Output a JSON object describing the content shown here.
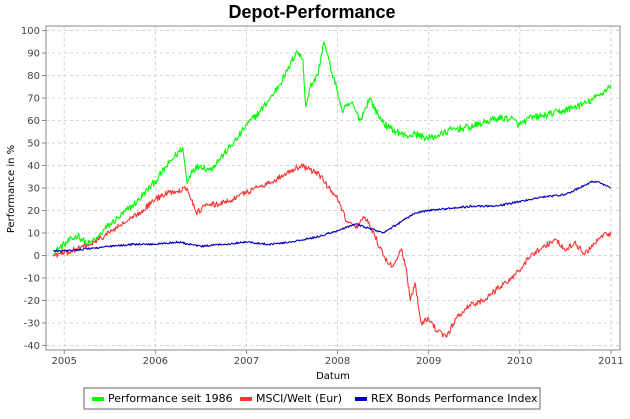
{
  "chart_data": {
    "type": "line",
    "title": "Depot-Performance",
    "xlabel": "Datum",
    "ylabel": "Performance in %",
    "xlim": [
      2004.8,
      2011.1
    ],
    "ylim": [
      -42,
      102
    ],
    "x_ticks": [
      2005,
      2006,
      2007,
      2008,
      2009,
      2010,
      2011
    ],
    "x_tick_labels": [
      "2005",
      "2006",
      "2007",
      "2008",
      "2009",
      "2010",
      "2011"
    ],
    "y_ticks": [
      -40,
      -30,
      -20,
      -10,
      0,
      10,
      20,
      30,
      40,
      50,
      60,
      70,
      80,
      90,
      100
    ],
    "y_tick_labels": [
      "-40",
      "-30",
      "-20",
      "-10",
      "0",
      "10",
      "20",
      "30",
      "40",
      "50",
      "60",
      "70",
      "80",
      "90",
      "100"
    ],
    "grid": true,
    "legend_position": "bottom",
    "series": [
      {
        "name": "Performance seit 1986",
        "color": "#00ff00",
        "x": [
          2004.88,
          2005.0,
          2005.15,
          2005.25,
          2005.35,
          2005.45,
          2005.6,
          2005.8,
          2006.0,
          2006.15,
          2006.3,
          2006.35,
          2006.4,
          2006.5,
          2006.6,
          2006.75,
          2006.9,
          2007.0,
          2007.15,
          2007.3,
          2007.45,
          2007.55,
          2007.62,
          2007.65,
          2007.7,
          2007.78,
          2007.85,
          2007.92,
          2008.0,
          2008.05,
          2008.15,
          2008.25,
          2008.35,
          2008.45,
          2008.55,
          2008.65,
          2008.75,
          2008.85,
          2009.0,
          2009.15,
          2009.25,
          2009.45,
          2009.6,
          2009.75,
          2009.9,
          2010.0,
          2010.1,
          2010.25,
          2010.45,
          2010.6,
          2010.75,
          2010.9,
          2011.0
        ],
        "values": [
          1,
          5,
          9,
          5,
          7,
          12,
          17,
          24,
          33,
          41,
          48,
          32,
          38,
          40,
          38,
          45,
          52,
          58,
          64,
          72,
          82,
          91,
          87,
          66,
          75,
          80,
          95,
          84,
          73,
          64,
          68,
          60,
          70,
          62,
          57,
          55,
          53,
          54,
          52,
          54,
          56,
          57,
          59,
          61,
          61,
          58,
          61,
          62,
          64,
          66,
          68,
          72,
          76
        ]
      },
      {
        "name": "MSCI/Welt (Eur)",
        "color": "#ff3333",
        "x": [
          2004.88,
          2005.0,
          2005.15,
          2005.3,
          2005.45,
          2005.6,
          2005.8,
          2006.0,
          2006.15,
          2006.35,
          2006.45,
          2006.55,
          2006.7,
          2006.85,
          2007.0,
          2007.15,
          2007.3,
          2007.45,
          2007.6,
          2007.7,
          2007.8,
          2007.9,
          2008.0,
          2008.1,
          2008.2,
          2008.3,
          2008.4,
          2008.5,
          2008.6,
          2008.7,
          2008.75,
          2008.8,
          2008.85,
          2008.92,
          2009.0,
          2009.1,
          2009.2,
          2009.3,
          2009.45,
          2009.6,
          2009.75,
          2009.9,
          2010.0,
          2010.1,
          2010.25,
          2010.4,
          2010.5,
          2010.6,
          2010.7,
          2010.8,
          2010.9,
          2011.0
        ],
        "values": [
          0,
          1,
          3,
          5,
          9,
          13,
          18,
          25,
          28,
          30,
          19,
          22,
          23,
          25,
          28,
          31,
          33,
          37,
          40,
          38,
          36,
          30,
          25,
          15,
          12,
          17,
          10,
          0,
          -5,
          3,
          -5,
          -20,
          -12,
          -30,
          -28,
          -34,
          -36,
          -28,
          -22,
          -20,
          -15,
          -10,
          -7,
          -1,
          4,
          7,
          2,
          6,
          1,
          4,
          9,
          9
        ]
      },
      {
        "name": "REX Bonds Performance Index",
        "color": "#0000bb",
        "x": [
          2004.88,
          2005.0,
          2005.25,
          2005.5,
          2005.75,
          2006.0,
          2006.25,
          2006.5,
          2006.75,
          2007.0,
          2007.25,
          2007.5,
          2007.75,
          2008.0,
          2008.2,
          2008.35,
          2008.5,
          2008.7,
          2008.85,
          2009.0,
          2009.25,
          2009.5,
          2009.75,
          2010.0,
          2010.25,
          2010.5,
          2010.7,
          2010.8,
          2010.9,
          2011.0
        ],
        "values": [
          2,
          2,
          3,
          4,
          5,
          5,
          6,
          4,
          5,
          6,
          5,
          6,
          8,
          11,
          14,
          12,
          10,
          15,
          19,
          20,
          21,
          22,
          22,
          24,
          26,
          27,
          31,
          33,
          32,
          30
        ]
      }
    ]
  }
}
